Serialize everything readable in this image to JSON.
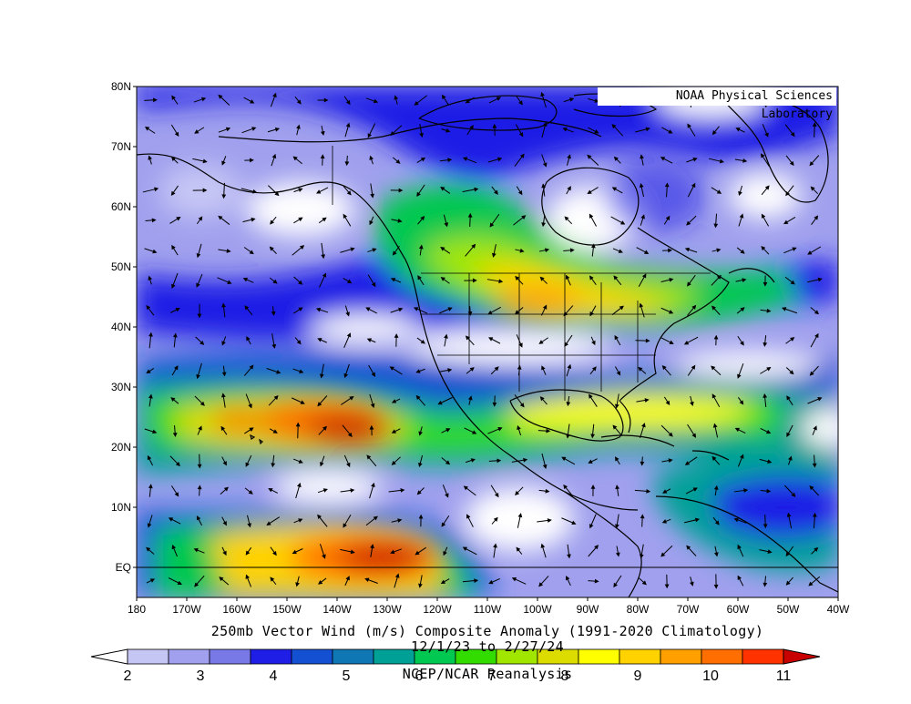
{
  "credit": "NOAA Physical Sciences Laboratory",
  "title": {
    "line1": "250mb Vector Wind (m/s) Composite Anomaly (1991-2020 Climatology)",
    "line2": "12/1/23 to 2/27/24",
    "line3": "NCEP/NCAR Reanalysis"
  },
  "axes": {
    "lat_labels": [
      "80N",
      "70N",
      "60N",
      "50N",
      "40N",
      "30N",
      "20N",
      "10N",
      "EQ"
    ],
    "lat_values": [
      80,
      70,
      60,
      50,
      40,
      30,
      20,
      10,
      0
    ],
    "lon_labels": [
      "180",
      "170W",
      "160W",
      "150W",
      "140W",
      "130W",
      "120W",
      "110W",
      "100W",
      "90W",
      "80W",
      "70W",
      "60W",
      "50W",
      "40W"
    ],
    "lon_values": [
      -180,
      -170,
      -160,
      -150,
      -140,
      -130,
      -120,
      -110,
      -100,
      -90,
      -80,
      -70,
      -60,
      -50,
      -40
    ],
    "lon_range": [
      -180,
      -40
    ],
    "lat_range": [
      -5,
      80
    ]
  },
  "colorbar": {
    "labels": [
      "2",
      "3",
      "4",
      "5",
      "6",
      "7",
      "8",
      "9",
      "10",
      "11"
    ],
    "colors": [
      "#ffffff",
      "#c6c6f5",
      "#a0a0ee",
      "#7878e6",
      "#1e1ee6",
      "#1450d2",
      "#0f78b4",
      "#00a096",
      "#00c850",
      "#32dc00",
      "#a0e600",
      "#dcdc00",
      "#ffff00",
      "#ffd200",
      "#ffa000",
      "#ff6e00",
      "#ff3200",
      "#c80000"
    ]
  },
  "chart_data": {
    "type": "heatmap",
    "variable": "250mb Vector Wind (m/s) Composite Anomaly",
    "x_range": [
      -180,
      -40
    ],
    "y_range": [
      -5,
      80
    ],
    "levels": [
      2,
      2.5,
      3,
      3.5,
      4,
      4.5,
      5,
      5.5,
      6,
      6.5,
      7,
      7.5,
      8,
      8.5,
      9,
      9.5,
      10,
      10.5,
      11
    ],
    "regions": [
      {
        "lon": -134,
        "lat": 24,
        "speed": 11
      },
      {
        "lon": -128,
        "lat": 1.5,
        "speed": 11
      },
      {
        "lon": -90,
        "lat": 43,
        "speed": 9
      },
      {
        "lon": -85,
        "lat": 25,
        "speed": 8.5
      },
      {
        "lon": -100,
        "lat": 55,
        "speed": 7
      },
      {
        "lon": -58,
        "lat": 15,
        "speed": 6
      },
      {
        "lon": -60,
        "lat": 45,
        "speed": 7
      }
    ]
  }
}
